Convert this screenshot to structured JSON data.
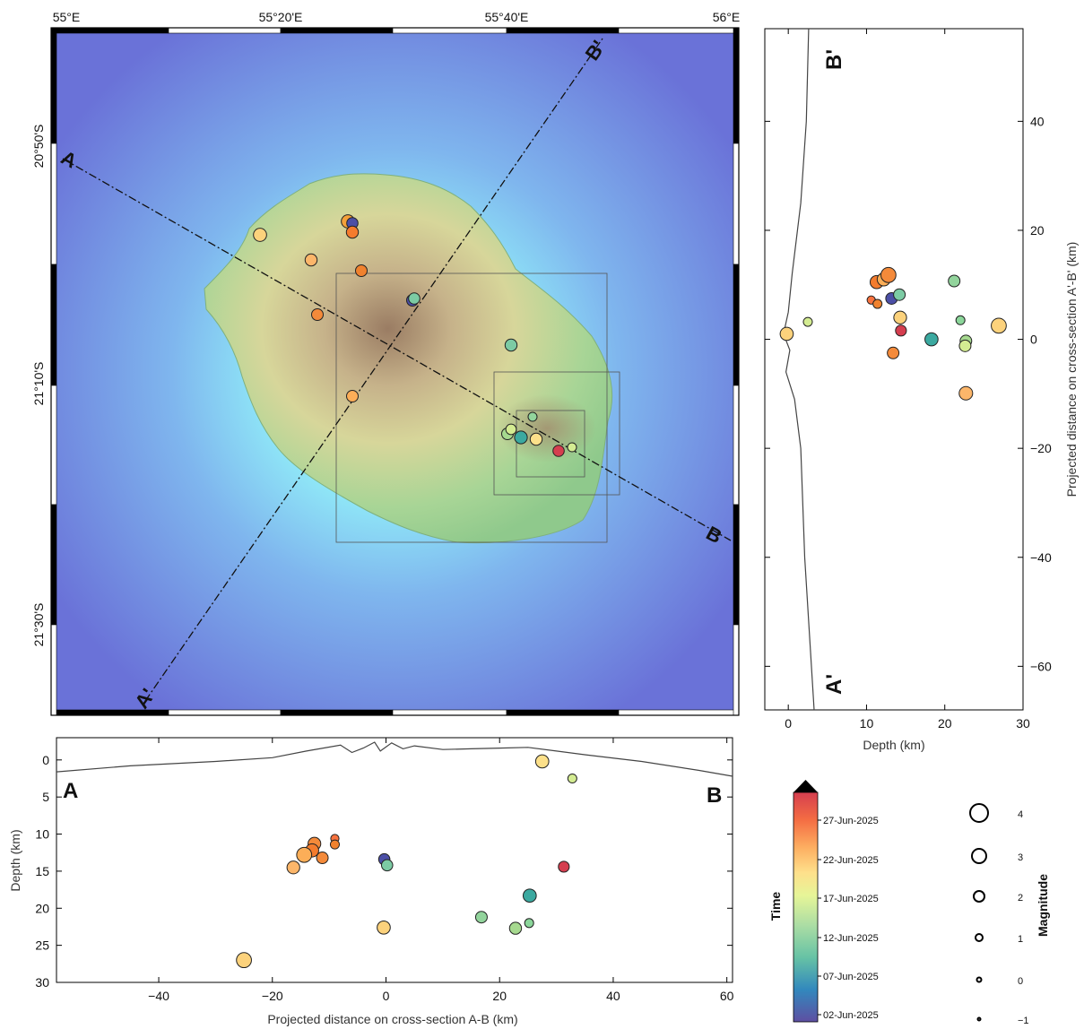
{
  "colors": {
    "ocean_deep": "#6a72d8",
    "ocean_shallow": "#8fe6f7",
    "land_low": "#8fc98c",
    "land_mid": "#d7d69a",
    "land_high": "#9a7c63",
    "frame": "#000000",
    "profile_line": "#222222"
  },
  "map": {
    "lon_labels": [
      "55°E",
      "55°20'E",
      "55°40'E",
      "56°E"
    ],
    "lat_labels": [
      "20°50'S",
      "21°10'S",
      "21°30'S"
    ],
    "profile_labels": {
      "a": "A",
      "b": "B",
      "a_prime": "A'",
      "b_prime": "B'"
    }
  },
  "chart_data": [
    {
      "type": "scatter",
      "panel": "cross-section A-B",
      "xlabel": "Projected distance on cross-section A-B (km)",
      "ylabel": "Depth (km)",
      "xlim": [
        -58,
        61
      ],
      "ylim": [
        30,
        -3
      ],
      "xticks": [
        -40,
        -20,
        0,
        20,
        40,
        60
      ],
      "xtick_labels": [
        "−40",
        "−20",
        "0",
        "20",
        "40",
        "60"
      ],
      "yticks": [
        0,
        5,
        10,
        15,
        20,
        25,
        30
      ],
      "ytick_labels": [
        "0",
        "5",
        "10",
        "15",
        "20",
        "25",
        "30"
      ],
      "end_labels": {
        "left": "A",
        "right": "B"
      },
      "topography": [
        [
          -58,
          1.6
        ],
        [
          -45,
          0.8
        ],
        [
          -30,
          0.2
        ],
        [
          -20,
          -0.3
        ],
        [
          -14,
          -1.2
        ],
        [
          -8,
          -2.0
        ],
        [
          -6,
          -1.0
        ],
        [
          -4,
          -1.6
        ],
        [
          -2,
          -2.4
        ],
        [
          -1,
          -1.2
        ],
        [
          1,
          -2.3
        ],
        [
          3,
          -1.5
        ],
        [
          5,
          -1.9
        ],
        [
          10,
          -1.4
        ],
        [
          15,
          -1.5
        ],
        [
          20,
          -1.6
        ],
        [
          25,
          -1.7
        ],
        [
          30,
          -1.2
        ],
        [
          35,
          -0.7
        ],
        [
          45,
          0.2
        ],
        [
          55,
          1.4
        ],
        [
          61,
          2.2
        ]
      ],
      "points": [
        {
          "x": 27.5,
          "y": 0.2,
          "mag": 2.3,
          "color": "#fce08a"
        },
        {
          "x": 32.8,
          "y": 2.5,
          "mag": 1.2,
          "color": "#d4ec92"
        },
        {
          "x": -9.0,
          "y": 10.6,
          "mag": 1.0,
          "color": "#f8723e"
        },
        {
          "x": -9.0,
          "y": 11.4,
          "mag": 1.2,
          "color": "#f0822e"
        },
        {
          "x": -12.6,
          "y": 11.3,
          "mag": 2.2,
          "color": "#f48a3a"
        },
        {
          "x": -13.0,
          "y": 12.2,
          "mag": 2.3,
          "color": "#f47c2e"
        },
        {
          "x": -14.4,
          "y": 12.8,
          "mag": 2.8,
          "color": "#fcae58"
        },
        {
          "x": -11.2,
          "y": 13.2,
          "mag": 1.9,
          "color": "#f48a3a"
        },
        {
          "x": -16.3,
          "y": 14.5,
          "mag": 2.2,
          "color": "#fcb66a"
        },
        {
          "x": -0.3,
          "y": 13.4,
          "mag": 1.8,
          "color": "#4b4fa6"
        },
        {
          "x": 0.2,
          "y": 14.2,
          "mag": 1.8,
          "color": "#7ccba4"
        },
        {
          "x": 31.3,
          "y": 14.4,
          "mag": 1.7,
          "color": "#d53e4f"
        },
        {
          "x": 25.3,
          "y": 18.3,
          "mag": 2.3,
          "color": "#3ba9a0"
        },
        {
          "x": 16.8,
          "y": 21.2,
          "mag": 1.9,
          "color": "#92d49c"
        },
        {
          "x": 25.2,
          "y": 22.0,
          "mag": 1.2,
          "color": "#8bd69a"
        },
        {
          "x": 22.8,
          "y": 22.7,
          "mag": 2.0,
          "color": "#a6d98f"
        },
        {
          "x": -0.4,
          "y": 22.6,
          "mag": 2.3,
          "color": "#fcd27c"
        },
        {
          "x": -25.0,
          "y": 27.0,
          "mag": 2.8,
          "color": "#fcd27c"
        }
      ]
    },
    {
      "type": "scatter",
      "panel": "cross-section A'-B'",
      "xlabel": "Depth (km)",
      "ylabel": "Projected distance on cross-section A'-B' (km)",
      "xlim": [
        -3,
        30
      ],
      "ylim": [
        -68,
        57
      ],
      "xticks": [
        0,
        10,
        20,
        30
      ],
      "xtick_labels": [
        "0",
        "10",
        "20",
        "30"
      ],
      "yticks": [
        -60,
        -40,
        -20,
        0,
        20,
        40
      ],
      "ytick_labels": [
        "−60",
        "−40",
        "−20",
        "0",
        "20",
        "40"
      ],
      "end_labels": {
        "top": "B'",
        "bottom": "A'"
      },
      "topography": [
        [
          2.6,
          57
        ],
        [
          2.3,
          40
        ],
        [
          1.6,
          25
        ],
        [
          0.5,
          12
        ],
        [
          0.0,
          5
        ],
        [
          -0.6,
          1
        ],
        [
          0.2,
          -2
        ],
        [
          -0.3,
          -6
        ],
        [
          0.8,
          -11
        ],
        [
          1.6,
          -20
        ],
        [
          2.1,
          -40
        ],
        [
          3.3,
          -68
        ]
      ],
      "points": [
        {
          "x": -0.2,
          "y": 1.0,
          "mag": 2.3,
          "color": "#fcd27c"
        },
        {
          "x": 2.5,
          "y": 3.2,
          "mag": 1.2,
          "color": "#d4ec92"
        },
        {
          "x": 10.6,
          "y": 7.2,
          "mag": 1.0,
          "color": "#f8723e"
        },
        {
          "x": 11.4,
          "y": 6.5,
          "mag": 1.2,
          "color": "#f0822e"
        },
        {
          "x": 11.3,
          "y": 10.5,
          "mag": 2.3,
          "color": "#f47c2e"
        },
        {
          "x": 12.2,
          "y": 11.0,
          "mag": 2.3,
          "color": "#fcae58"
        },
        {
          "x": 12.8,
          "y": 11.8,
          "mag": 2.8,
          "color": "#f48a3a"
        },
        {
          "x": 13.2,
          "y": 7.5,
          "mag": 1.9,
          "color": "#4b4fa6"
        },
        {
          "x": 14.2,
          "y": 8.2,
          "mag": 1.9,
          "color": "#7ccba4"
        },
        {
          "x": 14.3,
          "y": 4.0,
          "mag": 2.2,
          "color": "#fcd27c"
        },
        {
          "x": 14.4,
          "y": 1.6,
          "mag": 1.7,
          "color": "#d53e4f"
        },
        {
          "x": 13.4,
          "y": -2.5,
          "mag": 1.9,
          "color": "#f48a3a"
        },
        {
          "x": 18.3,
          "y": 0.0,
          "mag": 2.3,
          "color": "#3ba9a0"
        },
        {
          "x": 21.2,
          "y": 10.7,
          "mag": 1.9,
          "color": "#92d49c"
        },
        {
          "x": 22.0,
          "y": 3.5,
          "mag": 1.2,
          "color": "#8bd69a"
        },
        {
          "x": 22.7,
          "y": -0.3,
          "mag": 1.9,
          "color": "#a6d98f"
        },
        {
          "x": 22.6,
          "y": -1.2,
          "mag": 1.9,
          "color": "#d4ec92"
        },
        {
          "x": 26.9,
          "y": 2.5,
          "mag": 2.8,
          "color": "#fcd27c"
        },
        {
          "x": 22.7,
          "y": -9.9,
          "mag": 2.4,
          "color": "#fcb66a"
        }
      ]
    }
  ],
  "legend": {
    "time_title": "Time",
    "time_labels": [
      "27-Jun-2025",
      "22-Jun-2025",
      "17-Jun-2025",
      "12-Jun-2025",
      "07-Jun-2025",
      "02-Jun-2025"
    ],
    "magnitude_title": "Magnitude",
    "magnitudes": [
      "4",
      "3",
      "2",
      "1",
      "0",
      "−1"
    ]
  }
}
